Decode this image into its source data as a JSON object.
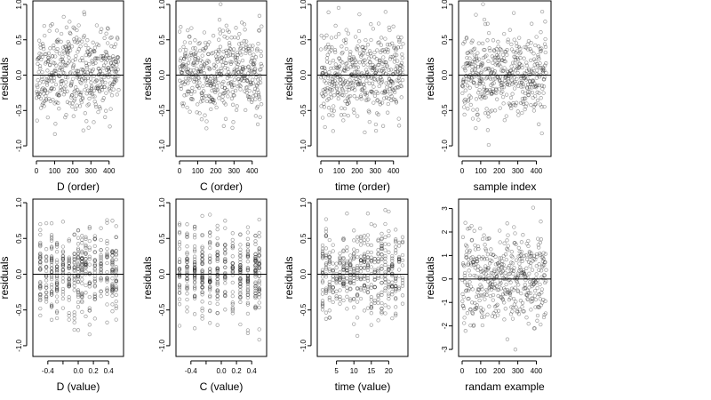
{
  "chart_data": [
    {
      "type": "scatter",
      "xlabel": "D (order)",
      "ylabel": "residuals",
      "xlim": [
        0,
        460
      ],
      "ylim": [
        -1.15,
        1.05
      ],
      "xticks": [
        0,
        100,
        200,
        300,
        400
      ],
      "yticks": [
        -1.0,
        -0.5,
        0.0,
        0.5,
        1.0
      ],
      "ref_y": 0,
      "kind": "order",
      "n": 460,
      "seed": 11
    },
    {
      "type": "scatter",
      "xlabel": "C (order)",
      "ylabel": "residuals",
      "xlim": [
        0,
        460
      ],
      "ylim": [
        -1.15,
        1.05
      ],
      "xticks": [
        0,
        100,
        200,
        300,
        400
      ],
      "yticks": [
        -1.0,
        -0.5,
        0.0,
        0.5,
        1.0
      ],
      "ref_y": 0,
      "kind": "order",
      "n": 460,
      "seed": 23
    },
    {
      "type": "scatter",
      "xlabel": "time (order)",
      "ylabel": "residuals",
      "xlim": [
        0,
        460
      ],
      "ylim": [
        -1.15,
        1.05
      ],
      "xticks": [
        0,
        100,
        200,
        300,
        400
      ],
      "yticks": [
        -1.0,
        -0.5,
        0.0,
        0.5,
        1.0
      ],
      "ref_y": 0,
      "kind": "order",
      "n": 460,
      "seed": 37
    },
    {
      "type": "scatter",
      "xlabel": "sample index",
      "ylabel": "residuals",
      "xlim": [
        0,
        460
      ],
      "ylim": [
        -1.15,
        1.05
      ],
      "xticks": [
        0,
        100,
        200,
        300,
        400
      ],
      "yticks": [
        -1.0,
        -0.5,
        0.0,
        0.5,
        1.0
      ],
      "ref_y": 0,
      "kind": "order",
      "n": 460,
      "seed": 41
    },
    {
      "type": "scatter",
      "xlabel": "D (value)",
      "ylabel": "residuals",
      "xlim": [
        -0.55,
        0.55
      ],
      "ylim": [
        -1.15,
        1.05
      ],
      "xticks": [
        -0.4,
        -0.2,
        0.0,
        0.2,
        0.4
      ],
      "xtick_labels": [
        "-0.4",
        "",
        "0.0",
        "0.2",
        "0.4"
      ],
      "yticks": [
        -1.0,
        -0.5,
        0.0,
        0.5,
        1.0
      ],
      "ref_y": 0,
      "kind": "value",
      "levels": [
        -0.5,
        -0.42,
        -0.35,
        -0.28,
        -0.2,
        -0.12,
        -0.05,
        0.0,
        0.05,
        0.1,
        0.15,
        0.22,
        0.3,
        0.38,
        0.45,
        0.5
      ],
      "n": 460,
      "seed": 53
    },
    {
      "type": "scatter",
      "xlabel": "C (value)",
      "ylabel": "residuals",
      "xlim": [
        -0.55,
        0.55
      ],
      "ylim": [
        -1.15,
        1.05
      ],
      "xticks": [
        -0.4,
        -0.2,
        0.0,
        0.2,
        0.4
      ],
      "xtick_labels": [
        "-0.4",
        "",
        "0.0",
        "0.2",
        "0.4"
      ],
      "yticks": [
        -1.0,
        -0.5,
        0.0,
        0.5,
        1.0
      ],
      "ref_y": 0,
      "kind": "value",
      "levels": [
        -0.55,
        -0.45,
        -0.35,
        -0.25,
        -0.15,
        -0.05,
        0.05,
        0.15,
        0.25,
        0.35,
        0.45,
        0.5
      ],
      "n": 460,
      "seed": 61
    },
    {
      "type": "scatter",
      "xlabel": "time (value)",
      "ylabel": "residuals",
      "xlim": [
        0.5,
        24.5
      ],
      "ylim": [
        -1.15,
        1.05
      ],
      "xticks": [
        5,
        10,
        15,
        20
      ],
      "yticks": [
        -1.0,
        -0.5,
        0.0,
        0.5,
        1.0
      ],
      "ref_y": 0,
      "kind": "value",
      "levels": [
        1,
        2,
        3,
        4,
        5,
        6,
        7,
        8,
        9,
        10,
        11,
        12,
        13,
        14,
        15,
        16,
        17,
        18,
        19,
        20,
        21,
        22,
        23,
        24
      ],
      "n": 460,
      "seed": 71
    },
    {
      "type": "scatter",
      "xlabel": "randam example",
      "ylabel": "residuals",
      "xlim": [
        0,
        460
      ],
      "ylim": [
        -3.3,
        3.4
      ],
      "xticks": [
        0,
        100,
        200,
        300,
        400
      ],
      "yticks": [
        -3,
        -2,
        -1,
        0,
        1,
        2,
        3
      ],
      "ref_y": 0,
      "kind": "random",
      "n": 460,
      "seed": 83
    }
  ]
}
